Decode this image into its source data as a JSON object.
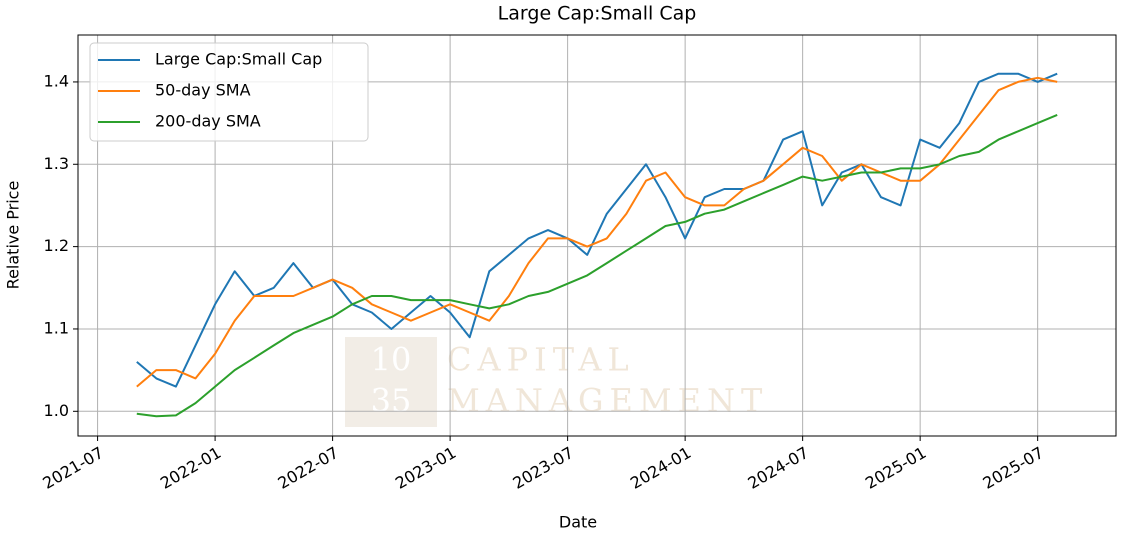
{
  "chart_data": {
    "type": "line",
    "title": "Large Cap:Small Cap",
    "x_label": "Date",
    "y_label": "Relative Price",
    "x": [
      "2021-09",
      "2021-10",
      "2021-11",
      "2021-12",
      "2022-01",
      "2022-02",
      "2022-03",
      "2022-04",
      "2022-05",
      "2022-06",
      "2022-07",
      "2022-08",
      "2022-09",
      "2022-10",
      "2022-11",
      "2022-12",
      "2023-01",
      "2023-02",
      "2023-03",
      "2023-04",
      "2023-05",
      "2023-06",
      "2023-07",
      "2023-08",
      "2023-09",
      "2023-10",
      "2023-11",
      "2023-12",
      "2024-01",
      "2024-02",
      "2024-03",
      "2024-04",
      "2024-05",
      "2024-06",
      "2024-07",
      "2024-08",
      "2024-09",
      "2024-10",
      "2024-11",
      "2024-12",
      "2025-01",
      "2025-02",
      "2025-03",
      "2025-04",
      "2025-05",
      "2025-06",
      "2025-07",
      "2025-08"
    ],
    "series": [
      {
        "name": "Large Cap:Small Cap",
        "color": "#1f77b4",
        "values": [
          1.06,
          1.04,
          1.03,
          1.08,
          1.13,
          1.17,
          1.14,
          1.15,
          1.18,
          1.15,
          1.16,
          1.13,
          1.12,
          1.1,
          1.12,
          1.14,
          1.12,
          1.09,
          1.17,
          1.19,
          1.21,
          1.22,
          1.21,
          1.19,
          1.24,
          1.27,
          1.3,
          1.26,
          1.21,
          1.26,
          1.27,
          1.27,
          1.28,
          1.33,
          1.34,
          1.25,
          1.29,
          1.3,
          1.26,
          1.25,
          1.33,
          1.32,
          1.35,
          1.4,
          1.41,
          1.41,
          1.4,
          1.41
        ]
      },
      {
        "name": "50-day SMA",
        "color": "#ff7f0e",
        "values": [
          1.03,
          1.05,
          1.05,
          1.04,
          1.07,
          1.11,
          1.14,
          1.14,
          1.14,
          1.15,
          1.16,
          1.15,
          1.13,
          1.12,
          1.11,
          1.12,
          1.13,
          1.12,
          1.11,
          1.14,
          1.18,
          1.21,
          1.21,
          1.2,
          1.21,
          1.24,
          1.28,
          1.29,
          1.26,
          1.25,
          1.25,
          1.27,
          1.28,
          1.3,
          1.32,
          1.31,
          1.28,
          1.3,
          1.29,
          1.28,
          1.28,
          1.3,
          1.33,
          1.36,
          1.39,
          1.4,
          1.405,
          1.4
        ]
      },
      {
        "name": "200-day SMA",
        "color": "#2ca02c",
        "values": [
          0.997,
          0.994,
          0.995,
          1.01,
          1.03,
          1.05,
          1.065,
          1.08,
          1.095,
          1.105,
          1.115,
          1.13,
          1.14,
          1.14,
          1.135,
          1.135,
          1.135,
          1.13,
          1.125,
          1.13,
          1.14,
          1.145,
          1.155,
          1.165,
          1.18,
          1.195,
          1.21,
          1.225,
          1.23,
          1.24,
          1.245,
          1.255,
          1.265,
          1.275,
          1.285,
          1.28,
          1.285,
          1.29,
          1.29,
          1.295,
          1.295,
          1.3,
          1.31,
          1.315,
          1.33,
          1.34,
          1.35,
          1.36
        ]
      }
    ],
    "xlim": [
      "2021-06",
      "2025-11"
    ],
    "xticks": [
      "2021-07",
      "2022-01",
      "2022-07",
      "2023-01",
      "2023-07",
      "2024-01",
      "2024-07",
      "2025-01",
      "2025-07"
    ],
    "ylim": [
      0.97,
      1.457
    ],
    "yticks": [
      {
        "value": 1,
        "label": "1.0"
      },
      1.1,
      1.2,
      1.3,
      1.4
    ],
    "grid": true,
    "legend": "upper-left",
    "watermark": [
      "10",
      "35",
      "CAPITAL",
      "MANAGEMENT"
    ]
  }
}
